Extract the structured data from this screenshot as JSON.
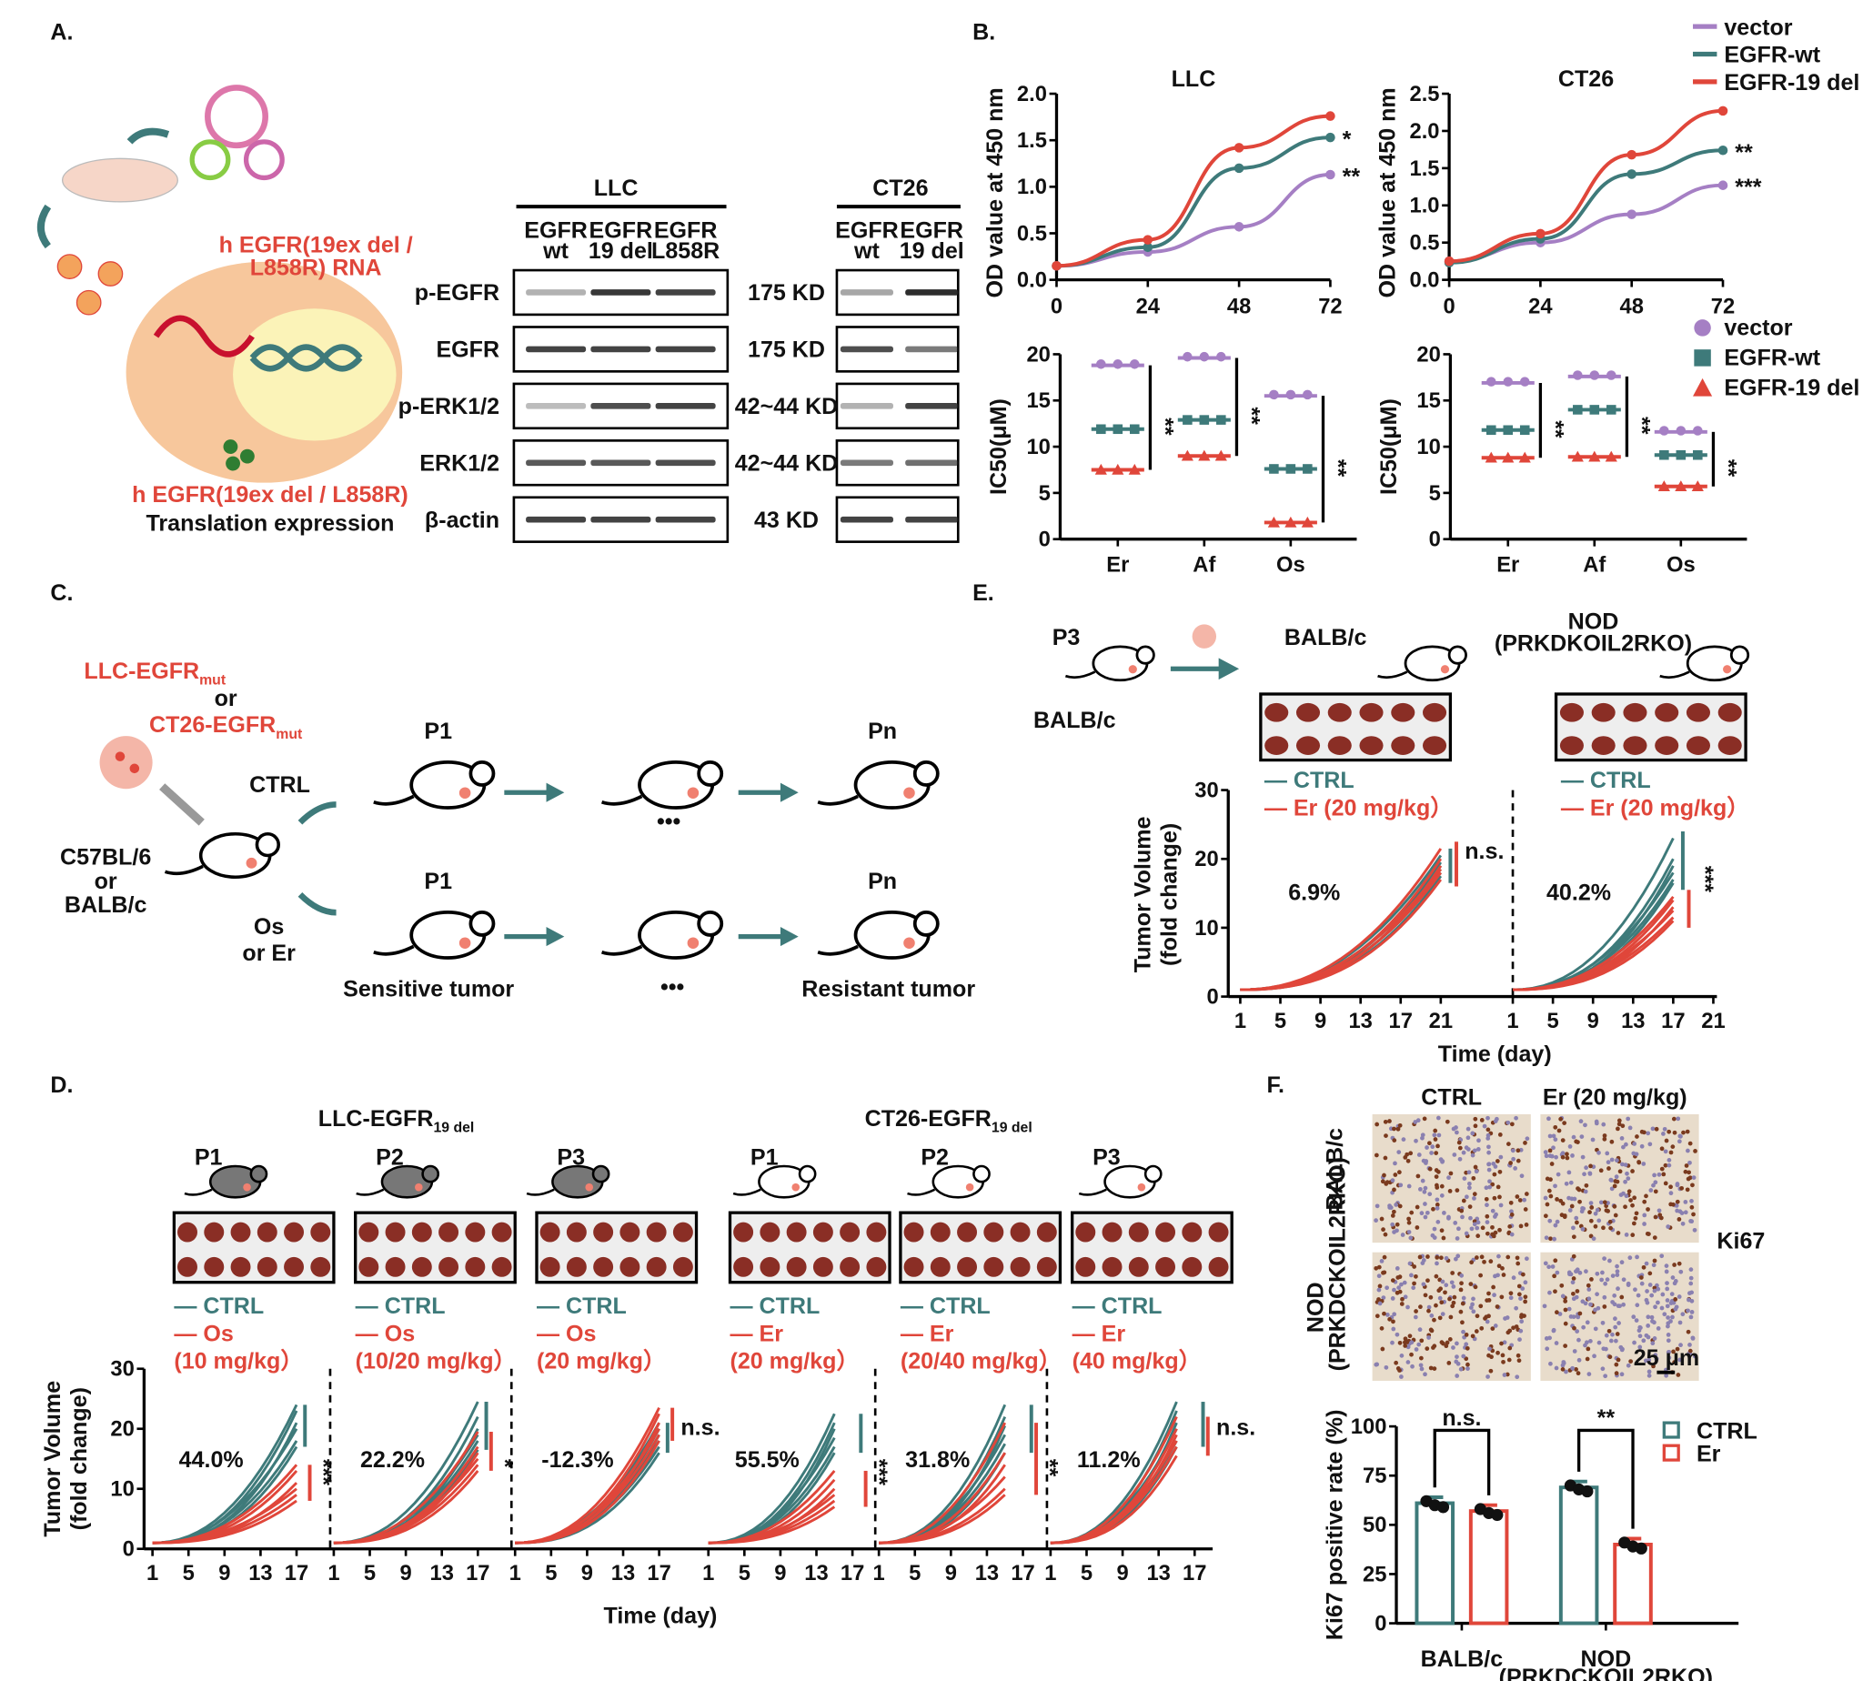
{
  "colors": {
    "vector": "#a57fc4",
    "wt": "#3e7a7a",
    "del": "#e0463a",
    "ctrl": "#3e7a7a",
    "treat": "#e0463a",
    "blot_band": "#222222",
    "tissue": "#8a2e25"
  },
  "panelA": {
    "label": "A.",
    "rna_text_1": "h EGFR(19ex del /",
    "rna_text_2": "L858R) RNA",
    "expr_text_1": "h EGFR(19ex del / L858R)",
    "expr_text_2": "Translation expression",
    "blot": {
      "llc_title": "LLC",
      "ct26_title": "CT26",
      "llc_columns": [
        {
          "l1": "EGFR",
          "l2": "wt"
        },
        {
          "l1": "EGFR",
          "l2": "19 del"
        },
        {
          "l1": "EGFR",
          "l2": "L858R"
        }
      ],
      "ct26_columns": [
        {
          "l1": "EGFR",
          "l2": "wt"
        },
        {
          "l1": "EGFR",
          "l2": "19 del"
        }
      ],
      "rows": [
        {
          "name": "p-EGFR",
          "kd": "175 KD",
          "llc": [
            0.35,
            0.9,
            0.85
          ],
          "ct26": [
            0.4,
            0.95
          ]
        },
        {
          "name": "EGFR",
          "kd": "175 KD",
          "llc": [
            0.85,
            0.85,
            0.85
          ],
          "ct26": [
            0.8,
            0.6
          ]
        },
        {
          "name": "p-ERK1/2",
          "kd": "42~44 KD",
          "llc": [
            0.3,
            0.8,
            0.85
          ],
          "ct26": [
            0.35,
            0.85
          ]
        },
        {
          "name": "ERK1/2",
          "kd": "42~44 KD",
          "llc": [
            0.75,
            0.75,
            0.8
          ],
          "ct26": [
            0.6,
            0.65
          ]
        },
        {
          "name": "β-actin",
          "kd": "43 KD",
          "llc": [
            0.85,
            0.85,
            0.85
          ],
          "ct26": [
            0.85,
            0.85
          ]
        }
      ]
    }
  },
  "panelB": {
    "label": "B."
  },
  "panelC": {
    "label": "C.",
    "cell_1": "LLC-EGFR",
    "cell_1_sub": "mut",
    "or": "or",
    "cell_2": "CT26-EGFR",
    "cell_2_sub": "mut",
    "ctrl": "CTRL",
    "host_1": "C57BL/6",
    "host_or": "or",
    "host_2": "BALB/c",
    "treat_1": "Os",
    "treat_2": "or Er",
    "p1": "P1",
    "pn": "Pn",
    "ellipsis": "•••",
    "sensitive": "Sensitive tumor",
    "resistant": "Resistant tumor"
  },
  "panelE": {
    "label": "E.",
    "p3": "P3",
    "balbc_src": "BALB/c",
    "balbc": "BALB/c",
    "nod": "NOD",
    "nod_sub": "(PRKDKOIL2RKO)",
    "legend_ctrl": "— CTRL",
    "legend_er": "— Er (20 mg/kg）"
  },
  "panelD": {
    "label": "D.",
    "llc_title": "LLC-EGFR",
    "llc_sub": "19 del",
    "ct26_title": "CT26-EGFR",
    "ct26_sub": "19 del"
  },
  "panelF": {
    "label": "F.",
    "col_ctrl": "CTRL",
    "col_er": "Er (20 mg/kg)",
    "row_balbc": "BALB/c",
    "row_nod": "NOD",
    "row_nod_sub": "(PRKDCKOIL2RKO)",
    "stain": "Ki67",
    "scale_bar": "25 μm"
  },
  "chart_data": [
    {
      "id": "B-growth-LLC",
      "type": "line",
      "title": "LLC",
      "xlabel": "",
      "ylabel": "OD value at 450 nm",
      "x": [
        0,
        24,
        48,
        72
      ],
      "xticks": [
        "0",
        "24",
        "48",
        "72"
      ],
      "ylim": [
        0,
        2.0
      ],
      "yticks": [
        "0.0",
        "0.5",
        "1.0",
        "1.5",
        "2.0"
      ],
      "series": [
        {
          "name": "vector",
          "color": "#a57fc4",
          "values": [
            0.15,
            0.3,
            0.57,
            1.13
          ]
        },
        {
          "name": "EGFR-wt",
          "color": "#3e7a7a",
          "values": [
            0.15,
            0.35,
            1.2,
            1.53
          ]
        },
        {
          "name": "EGFR-19 del",
          "color": "#e0463a",
          "values": [
            0.15,
            0.43,
            1.42,
            1.76
          ]
        }
      ],
      "annotations": [
        "*",
        "**"
      ],
      "legend": "top-right"
    },
    {
      "id": "B-growth-CT26",
      "type": "line",
      "title": "CT26",
      "xlabel": "",
      "ylabel": "OD value at 450 nm",
      "x": [
        0,
        24,
        48,
        72
      ],
      "xticks": [
        "0",
        "24",
        "48",
        "72"
      ],
      "ylim": [
        0,
        2.5
      ],
      "yticks": [
        "0.0",
        "0.5",
        "1.0",
        "1.5",
        "2.0",
        "2.5"
      ],
      "series": [
        {
          "name": "vector",
          "color": "#a57fc4",
          "values": [
            0.25,
            0.5,
            0.88,
            1.27
          ]
        },
        {
          "name": "EGFR-wt",
          "color": "#3e7a7a",
          "values": [
            0.23,
            0.55,
            1.42,
            1.74
          ]
        },
        {
          "name": "EGFR-19 del",
          "color": "#e0463a",
          "values": [
            0.25,
            0.62,
            1.68,
            2.27
          ]
        }
      ],
      "annotations": [
        "**",
        "***"
      ]
    },
    {
      "id": "B-IC50-LLC",
      "type": "scatter",
      "ylabel": "IC50(μM)",
      "categories": [
        "Er",
        "Af",
        "Os"
      ],
      "ylim": [
        0,
        20
      ],
      "yticks": [
        "0",
        "5",
        "10",
        "15",
        "20"
      ],
      "series": [
        {
          "name": "vector",
          "color": "#a57fc4",
          "marker": "circle",
          "values": [
            18.8,
            19.6,
            15.5
          ]
        },
        {
          "name": "EGFR-wt",
          "color": "#3e7a7a",
          "marker": "square",
          "values": [
            11.9,
            12.9,
            7.6
          ]
        },
        {
          "name": "EGFR-19 del",
          "color": "#e0463a",
          "marker": "triangle",
          "values": [
            7.5,
            9.0,
            1.8
          ]
        }
      ],
      "annotations": [
        "**",
        "**",
        "**"
      ]
    },
    {
      "id": "B-IC50-CT26",
      "type": "scatter",
      "ylabel": "IC50(μM)",
      "categories": [
        "Er",
        "Af",
        "Os"
      ],
      "ylim": [
        0,
        20
      ],
      "yticks": [
        "0",
        "5",
        "10",
        "15",
        "20"
      ],
      "series": [
        {
          "name": "vector",
          "color": "#a57fc4",
          "marker": "circle",
          "values": [
            16.9,
            17.6,
            11.6
          ]
        },
        {
          "name": "EGFR-wt",
          "color": "#3e7a7a",
          "marker": "square",
          "values": [
            11.8,
            14.0,
            9.1
          ]
        },
        {
          "name": "EGFR-19 del",
          "color": "#e0463a",
          "marker": "triangle",
          "values": [
            8.8,
            8.9,
            5.7
          ]
        }
      ],
      "annotations": [
        "**",
        "**",
        "**"
      ],
      "legend": "right"
    },
    {
      "id": "D-tumor",
      "type": "line",
      "ylabel": "Tumor Volume\n(fold change)",
      "xlabel": "Time (day)",
      "ylim": [
        0,
        30
      ],
      "yticks": [
        "0",
        "10",
        "20",
        "30"
      ],
      "xticks": [
        "1",
        "5",
        "9",
        "13",
        "17"
      ],
      "panels": [
        {
          "passage": "P1",
          "ctrl": "— CTRL",
          "treat": "— Os",
          "dose": "(10 mg/kg）",
          "inhibition": "44.0%",
          "sig": "***",
          "ctrl_final": [
            24,
            23,
            21,
            20,
            18,
            17
          ],
          "treat_final": [
            14,
            13,
            11,
            10,
            9,
            8
          ],
          "end_day": 17
        },
        {
          "passage": "P2",
          "ctrl": "— CTRL",
          "treat": "— Os",
          "dose": "(10/20 mg/kg）",
          "inhibition": "22.2%",
          "sig": "*",
          "ctrl_final": [
            24.5,
            22,
            20,
            19,
            18,
            16.5
          ],
          "treat_final": [
            19.5,
            17,
            16,
            15,
            14,
            13
          ],
          "end_day": 17
        },
        {
          "passage": "P3",
          "ctrl": "— CTRL",
          "treat": "— Os",
          "dose": "(20 mg/kg）",
          "inhibition": "-12.3%",
          "sig": "n.s.",
          "ctrl_final": [
            21,
            20,
            19,
            18,
            17,
            16
          ],
          "treat_final": [
            23.5,
            22.5,
            21,
            20,
            19,
            18
          ],
          "end_day": 17
        },
        {
          "passage": "P1",
          "ctrl": "— CTRL",
          "treat": "— Er",
          "dose": "(20 mg/kg）",
          "inhibition": "55.5%",
          "sig": "***",
          "ctrl_final": [
            22.5,
            21,
            20,
            18.5,
            17,
            16
          ],
          "treat_final": [
            13,
            11.5,
            10,
            9,
            8,
            7
          ],
          "end_day": 15
        },
        {
          "passage": "P2",
          "ctrl": "— CTRL",
          "treat": "— Er",
          "dose": "(20/40 mg/kg）",
          "inhibition": "31.8%",
          "sig": "**",
          "ctrl_final": [
            24,
            22,
            20.5,
            19,
            17.5,
            16
          ],
          "treat_final": [
            21,
            16,
            14,
            12,
            10,
            9
          ],
          "end_day": 15
        },
        {
          "passage": "P3",
          "ctrl": "— CTRL",
          "treat": "— Er",
          "dose": "(40 mg/kg）",
          "inhibition": "11.2%",
          "sig": "n.s.",
          "ctrl_final": [
            24.5,
            23,
            21,
            20,
            18,
            17
          ],
          "treat_final": [
            22,
            20,
            19,
            18,
            17,
            15.5
          ],
          "end_day": 15
        }
      ]
    },
    {
      "id": "E-tumor",
      "type": "line",
      "ylabel": "Tumor Volume\n(fold change)",
      "xlabel": "Time (day)",
      "ylim": [
        0,
        30
      ],
      "yticks": [
        "0",
        "10",
        "20",
        "30"
      ],
      "xticks": [
        "1",
        "5",
        "9",
        "13",
        "17",
        "21"
      ],
      "panels": [
        {
          "host": "BALB/c",
          "inhibition": "6.9%",
          "sig": "n.s.",
          "ctrl_final": [
            20.5,
            19.5,
            19,
            18.5,
            18,
            17.5
          ],
          "treat_final": [
            21.5,
            20,
            19,
            18.5,
            18,
            17
          ],
          "end_day": 21
        },
        {
          "host": "NOD",
          "inhibition": "40.2%",
          "sig": "***",
          "ctrl_final": [
            23,
            20,
            19,
            18,
            17,
            16.5
          ],
          "treat_final": [
            14.5,
            14,
            13,
            12.5,
            11.5,
            11
          ],
          "end_day": 17
        }
      ]
    },
    {
      "id": "F-Ki67",
      "type": "bar",
      "ylabel": "Ki67 positive rate (%)",
      "categories": [
        "BALB/c",
        "NOD"
      ],
      "category_sub": [
        "",
        "(PRKDCKOIL2RKO)"
      ],
      "ylim": [
        0,
        100
      ],
      "yticks": [
        "0",
        "25",
        "50",
        "75",
        "100"
      ],
      "series": [
        {
          "name": "CTRL",
          "color": "#3e7a7a",
          "values": [
            61,
            69
          ]
        },
        {
          "name": "Er",
          "color": "#e0463a",
          "values": [
            57,
            40
          ]
        }
      ],
      "annotations": [
        "n.s.",
        "**"
      ],
      "legend": "right"
    }
  ]
}
